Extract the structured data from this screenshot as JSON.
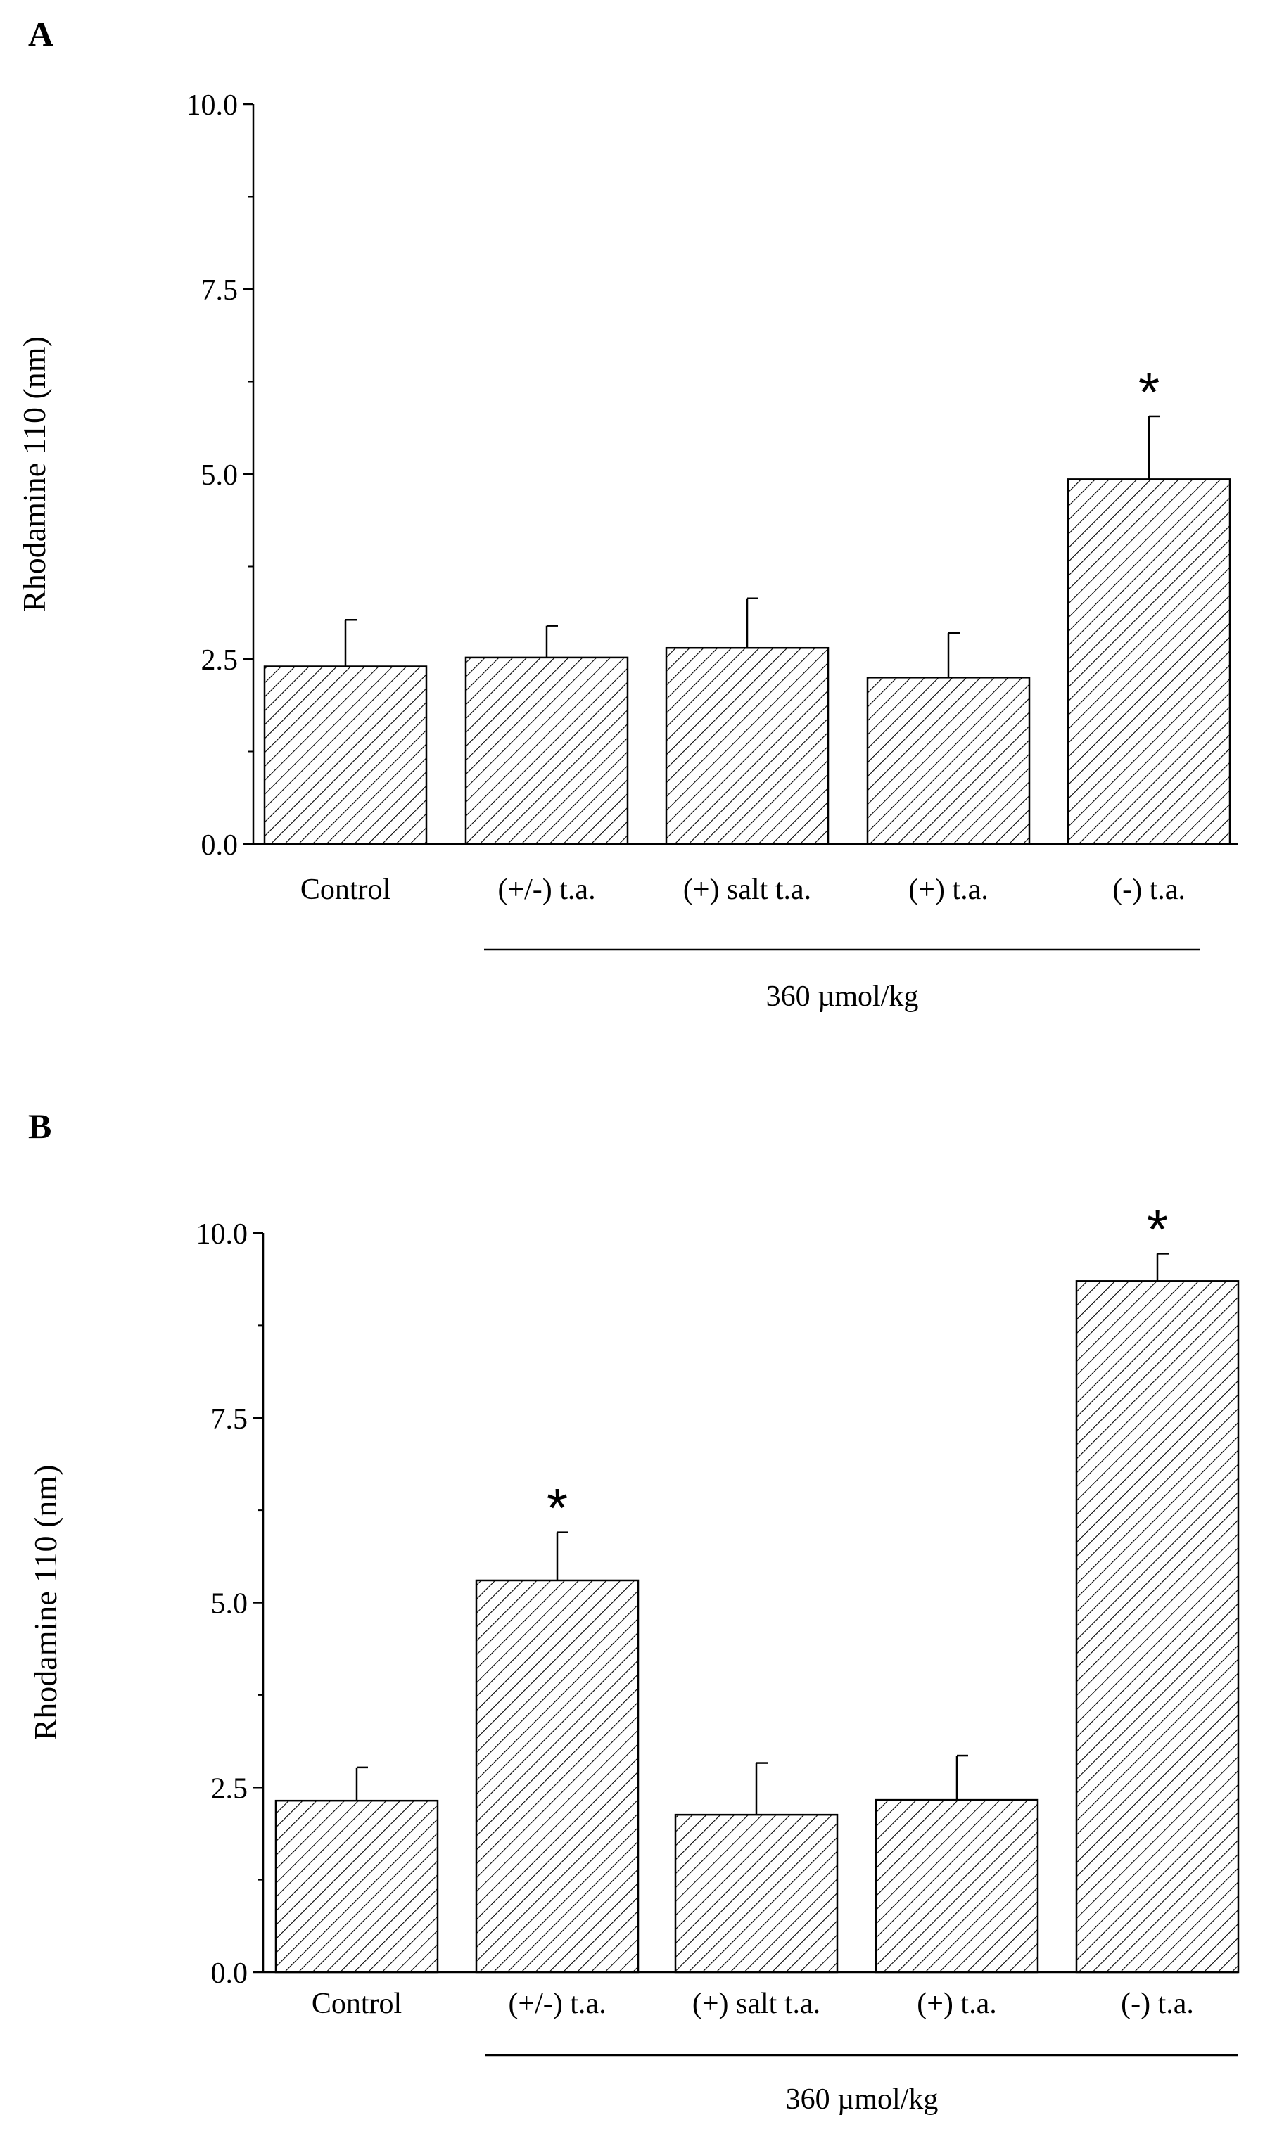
{
  "figure": {
    "background": "#ffffff",
    "ink": "#000000"
  },
  "chart_data": [
    {
      "panel_label": "A",
      "type": "bar",
      "ylabel": "Rhodamine 110 (nm)",
      "ylim": [
        0,
        10
      ],
      "yticks": [
        0.0,
        2.5,
        5.0,
        7.5,
        10.0
      ],
      "ytick_labels": [
        "0.0",
        "2.5",
        "5.0",
        "7.5",
        "10.0"
      ],
      "categories": [
        "Control",
        "(+/-) t.a.",
        "(+) salt t.a.",
        "(+) t.a.",
        "(-) t.a."
      ],
      "values": [
        2.4,
        2.52,
        2.65,
        2.25,
        4.93
      ],
      "errors": [
        0.63,
        0.43,
        0.67,
        0.6,
        0.85
      ],
      "significance": [
        "",
        "",
        "",
        "",
        "*"
      ],
      "group_label": "360 µmol/kg",
      "group_span": [
        "(+/-) t.a.",
        "(-) t.a."
      ],
      "bar_pattern": "diagonal hatch"
    },
    {
      "panel_label": "B",
      "type": "bar",
      "ylabel": "Rhodamine 110 (nm)",
      "ylim": [
        0,
        10
      ],
      "yticks": [
        0.0,
        2.5,
        5.0,
        7.5,
        10.0
      ],
      "ytick_labels": [
        "0.0",
        "2.5",
        "5.0",
        "7.5",
        "10.0"
      ],
      "categories": [
        "Control",
        "(+/-) t.a.",
        "(+) salt t.a.",
        "(+) t.a.",
        "(-) t.a."
      ],
      "values": [
        2.32,
        5.3,
        2.13,
        2.33,
        9.35
      ],
      "errors": [
        0.45,
        0.65,
        0.7,
        0.6,
        0.37
      ],
      "significance": [
        "",
        "*",
        "",
        "",
        "*"
      ],
      "group_label": "360 µmol/kg",
      "group_span": [
        "(+/-) t.a.",
        "(-) t.a."
      ],
      "bar_pattern": "diagonal hatch"
    }
  ]
}
